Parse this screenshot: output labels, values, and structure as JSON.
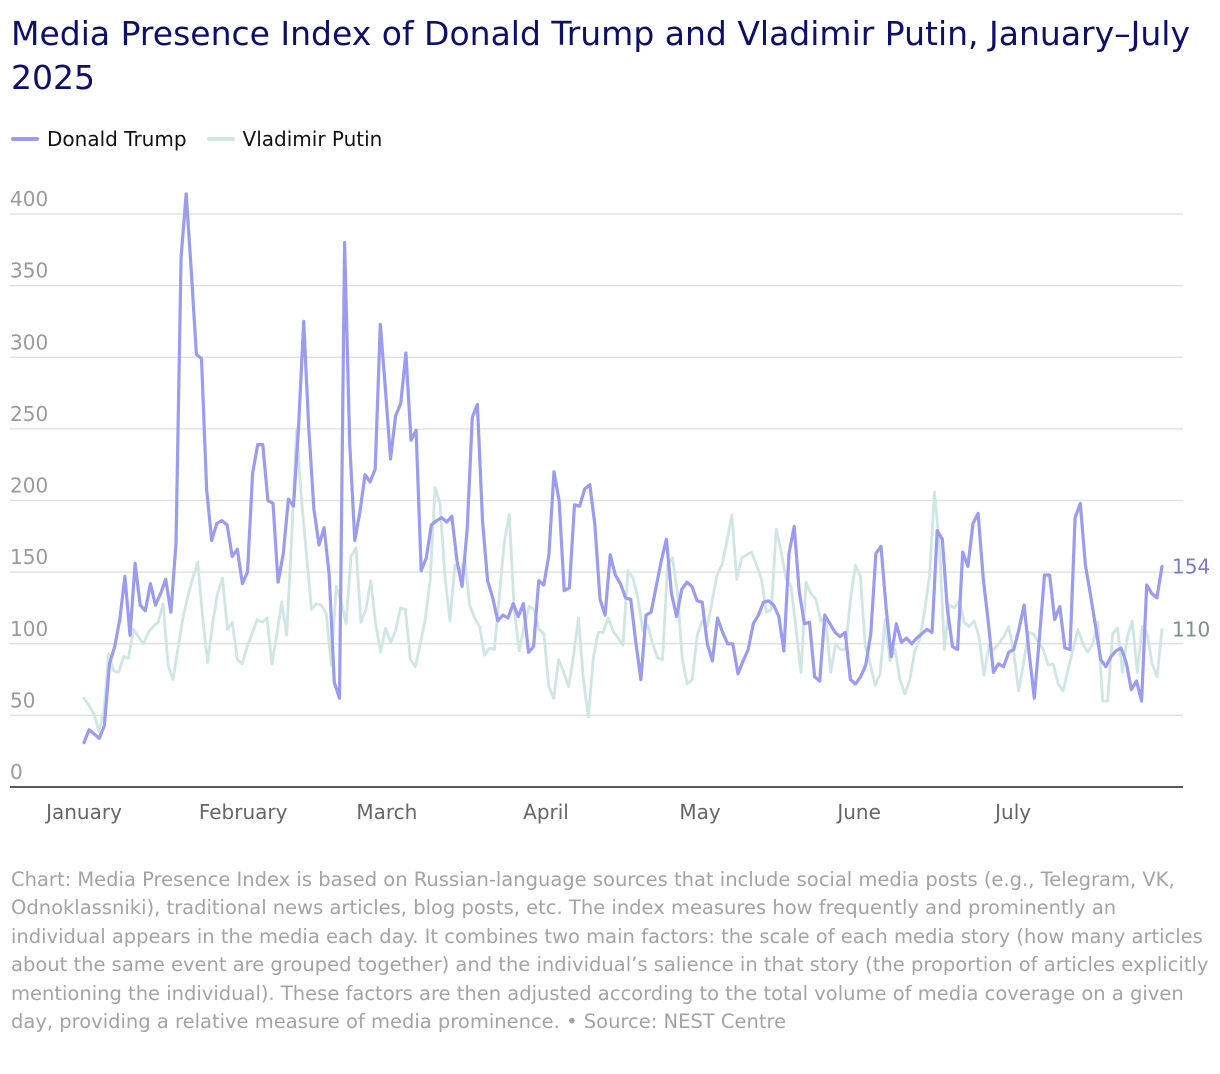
{
  "title": "Media Presence Index of Donald Trump and Vladimir Putin, January–July 2025",
  "footnote": "Chart: Media Presence Index is based on Russian-language sources that include social media posts (e.g., Telegram, VK, Odnoklassniki), traditional news articles, blog posts, etc. The index measures how frequently and prominently an individual appears in the media each day. It combines two main factors: the scale of each media story (how many articles about the same event are grouped together) and the individual’s salience in that story (the proportion of articles explicitly mentioning the individual). These factors are then adjusted according to the total volume of media coverage on a given day, providing a relative measure of media prominence. • Source: NEST Centre",
  "chart_data": {
    "type": "line",
    "title": "Media Presence Index of Donald Trump and Vladimir Putin, January–July 2025",
    "xlabel": "",
    "ylabel": "",
    "x_start": "2025-01-01",
    "x_end": "2025-07-30",
    "ylim": [
      0,
      400
    ],
    "y_ticks": [
      "0",
      "50",
      "100",
      "150",
      "200",
      "250",
      "300",
      "350",
      "400"
    ],
    "x_ticks": [
      {
        "label": "January",
        "date": "2025-01-01"
      },
      {
        "label": "February",
        "date": "2025-02-01"
      },
      {
        "label": "March",
        "date": "2025-03-01"
      },
      {
        "label": "April",
        "date": "2025-04-01"
      },
      {
        "label": "May",
        "date": "2025-05-01"
      },
      {
        "label": "June",
        "date": "2025-06-01"
      },
      {
        "label": "July",
        "date": "2025-07-01"
      }
    ],
    "grid": "horizontal",
    "legend_position": "top-left",
    "series": [
      {
        "name": "Donald Trump",
        "color": "#9b9bf0",
        "end_label": "154",
        "values": [
          31,
          40,
          37,
          34,
          43,
          86,
          98,
          117,
          147,
          106,
          156,
          127,
          123,
          142,
          127,
          135,
          145,
          122,
          170,
          370,
          414,
          360,
          302,
          299,
          208,
          172,
          184,
          186,
          183,
          161,
          166,
          142,
          150,
          219,
          239,
          239,
          200,
          198,
          143,
          163,
          201,
          196,
          252,
          325,
          250,
          194,
          169,
          181,
          148,
          73,
          62,
          380,
          240,
          172,
          192,
          218,
          213,
          222,
          323,
          278,
          229,
          259,
          268,
          303,
          242,
          249,
          151,
          160,
          183,
          186,
          188,
          185,
          189,
          158,
          140,
          180,
          258,
          267,
          186,
          144,
          132,
          116,
          120,
          118,
          128,
          119,
          128,
          94,
          98,
          144,
          141,
          162,
          220,
          200,
          137,
          139,
          197,
          196,
          208,
          211,
          183,
          131,
          120,
          162,
          148,
          142,
          132,
          131,
          101,
          75,
          120,
          122,
          140,
          158,
          173,
          135,
          119,
          138,
          143,
          140,
          130,
          129,
          100,
          88,
          118,
          108,
          100,
          100,
          79,
          88,
          96,
          114,
          120,
          129,
          130,
          127,
          119,
          95,
          163,
          182,
          136,
          114,
          115,
          77,
          74,
          120,
          114,
          108,
          105,
          108,
          75,
          72,
          77,
          85,
          107,
          163,
          168,
          125,
          91,
          114,
          101,
          104,
          100,
          104,
          107,
          110,
          108,
          179,
          173,
          124,
          98,
          96,
          164,
          154,
          184,
          191,
          146,
          115,
          80,
          86,
          84,
          94,
          96,
          110,
          127,
          93,
          62,
          104,
          148,
          148,
          117,
          126,
          97,
          96,
          188,
          198,
          155,
          134,
          112,
          89,
          84,
          91,
          95,
          97,
          87,
          68,
          74,
          60,
          141,
          135,
          132,
          154
        ]
      },
      {
        "name": "Vladimir Putin",
        "color": "#cfe6e2",
        "end_label": "110",
        "values": [
          62,
          57,
          51,
          39,
          52,
          93,
          81,
          80,
          91,
          90,
          110,
          105,
          100,
          108,
          112,
          115,
          128,
          85,
          75,
          97,
          118,
          133,
          146,
          157,
          118,
          87,
          114,
          135,
          146,
          110,
          115,
          89,
          86,
          98,
          107,
          117,
          115,
          118,
          86,
          107,
          129,
          106,
          175,
          250,
          200,
          162,
          124,
          128,
          127,
          121,
          85,
          140,
          130,
          114,
          161,
          167,
          115,
          124,
          144,
          113,
          94,
          111,
          101,
          109,
          125,
          124,
          89,
          84,
          100,
          117,
          144,
          209,
          198,
          147,
          116,
          155,
          149,
          160,
          127,
          118,
          112,
          92,
          97,
          96,
          134,
          171,
          190,
          124,
          95,
          112,
          126,
          124,
          110,
          107,
          70,
          62,
          89,
          80,
          70,
          92,
          118,
          75,
          49,
          90,
          108,
          108,
          118,
          109,
          104,
          99,
          151,
          146,
          132,
          109,
          113,
          100,
          90,
          89,
          155,
          160,
          136,
          89,
          72,
          75,
          106,
          116,
          112,
          129,
          148,
          155,
          171,
          190,
          145,
          160,
          162,
          164,
          155,
          145,
          122,
          124,
          180,
          164,
          145,
          140,
          110,
          80,
          143,
          135,
          131,
          116,
          118,
          80,
          100,
          96,
          96,
          131,
          155,
          147,
          98,
          86,
          71,
          79,
          117,
          88,
          96,
          75,
          65,
          75,
          95,
          103,
          123,
          148,
          206,
          168,
          96,
          127,
          125,
          130,
          115,
          112,
          116,
          105,
          78,
          99,
          96,
          100,
          105,
          112,
          94,
          67,
          86,
          108,
          107,
          101,
          96,
          85,
          86,
          72,
          67,
          82,
          96,
          110,
          100,
          94,
          100,
          115,
          60,
          60,
          107,
          111,
          80,
          105,
          116,
          80,
          112,
          107,
          86,
          77,
          110
        ]
      }
    ]
  }
}
